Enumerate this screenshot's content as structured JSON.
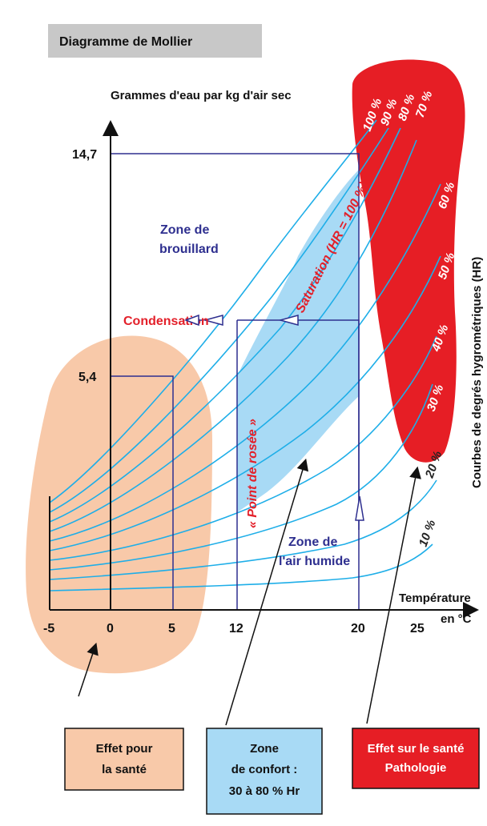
{
  "title": "Diagramme de Mollier",
  "y_axis_label": "Grammes d'eau par kg d'air sec",
  "x_axis_label_line1": "Température",
  "x_axis_label_line2": "en °C",
  "side_label": "Courbes de degrés hygrométriques (HR)",
  "y_ticks": [
    "14,7",
    "5,4"
  ],
  "x_ticks": [
    "-5",
    "0",
    "5",
    "12",
    "20",
    "25"
  ],
  "zone_brouillard": [
    "Zone de",
    "brouillard"
  ],
  "zone_air_humide": [
    "Zone de",
    "l'air humide"
  ],
  "condensation": "Condensation",
  "saturation": "Saturation (HR = 100 %)",
  "point_rosee": "« Point de rosée »",
  "hr_curve_labels": [
    "100 %",
    "90 %",
    "80 %",
    "70 %",
    "60 %",
    "50 %",
    "40 %",
    "30 %",
    "20 %",
    "10 %"
  ],
  "boxes": {
    "effet_sante": [
      "Effet pour",
      "la santé"
    ],
    "zone_confort": [
      "Zone",
      "de confort :",
      "30 à 80 % Hr"
    ],
    "pathologie": [
      "Effet sur le santé",
      "Pathologie"
    ]
  },
  "colors": {
    "curves": "#1eaee8",
    "comfort_zone": "#a8daf5",
    "health_zone": "#f8c9a9",
    "pathology_zone": "#e61e25",
    "navy": "#2e2f8f",
    "title_bg": "#c8c8c8"
  }
}
